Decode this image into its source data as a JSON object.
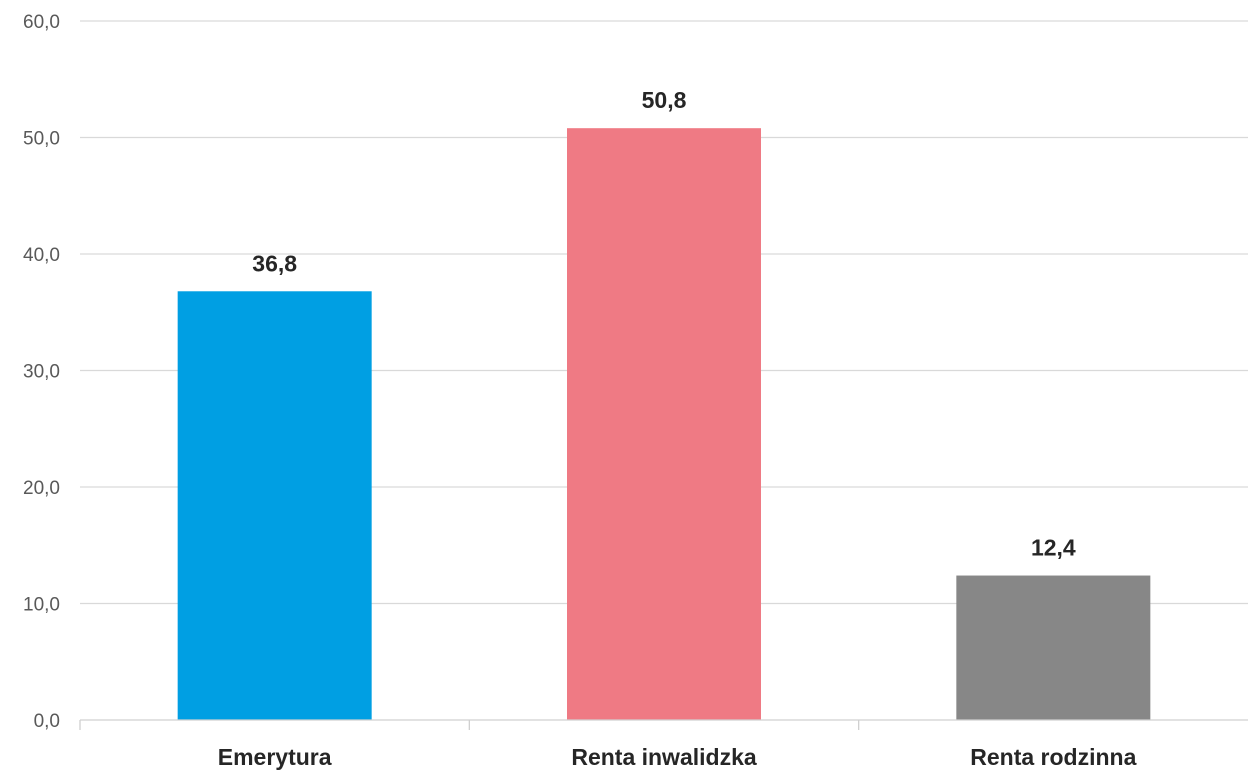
{
  "chart_data": {
    "type": "bar",
    "categories": [
      "Emerytura",
      "Renta inwalidzka",
      "Renta rodzinna"
    ],
    "values": [
      36.8,
      50.8,
      12.4
    ],
    "data_labels": [
      "36,8",
      "50,8",
      "12,4"
    ],
    "colors": [
      "#009fe3",
      "#ef7a84",
      "#878787"
    ],
    "ylim": [
      0,
      60
    ],
    "yticks": [
      0,
      10,
      20,
      30,
      40,
      50,
      60
    ],
    "ytick_labels": [
      "0,0",
      "10,0",
      "20,0",
      "30,0",
      "40,0",
      "50,0",
      "60,0"
    ],
    "grid": true,
    "legend": "none"
  }
}
